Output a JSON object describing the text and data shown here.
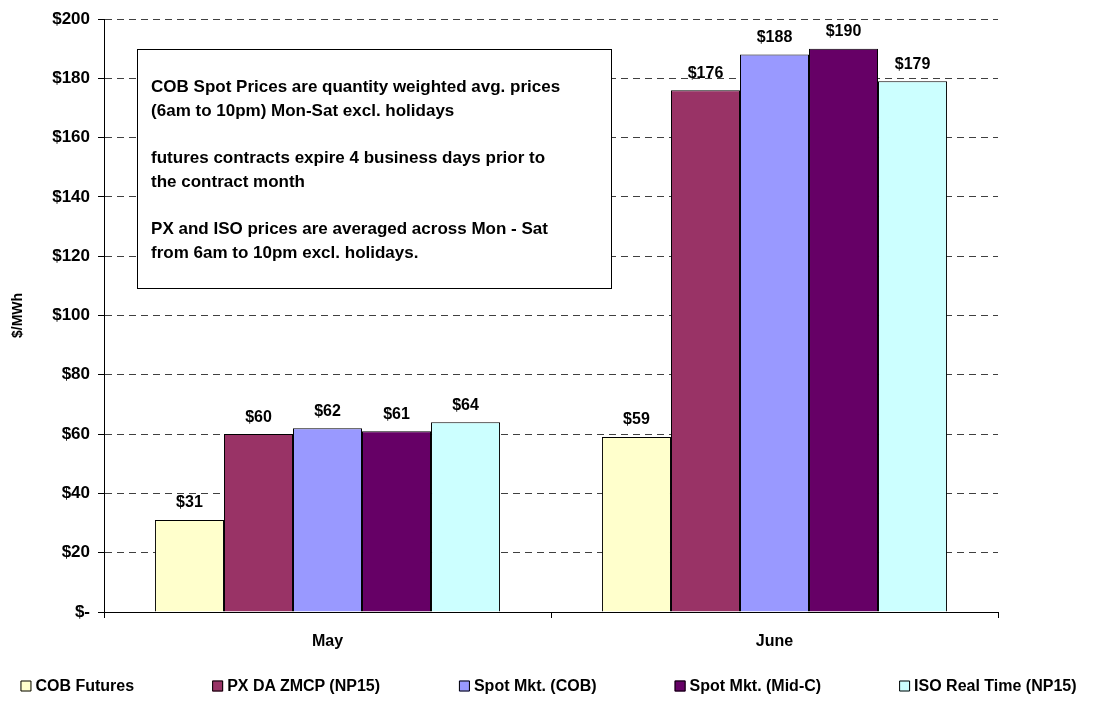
{
  "chart_data": {
    "type": "bar",
    "categories": [
      "May",
      "June"
    ],
    "series": [
      {
        "name": "COB Futures",
        "color": "#ffffcc",
        "values": [
          31,
          59
        ],
        "value_labels": [
          "$31",
          "$59"
        ]
      },
      {
        "name": "PX DA ZMCP (NP15)",
        "color": "#993366",
        "values": [
          60,
          176
        ],
        "value_labels": [
          "$60",
          "$176"
        ]
      },
      {
        "name": "Spot Mkt. (COB)",
        "color": "#9999ff",
        "values": [
          62,
          188
        ],
        "value_labels": [
          "$62",
          "$188"
        ]
      },
      {
        "name": "Spot Mkt. (Mid-C)",
        "color": "#660066",
        "values": [
          61,
          190
        ],
        "value_labels": [
          "$61",
          "$190"
        ]
      },
      {
        "name": "ISO Real Time (NP15)",
        "color": "#ccffff",
        "values": [
          64,
          179
        ],
        "value_labels": [
          "$64",
          "$179"
        ]
      }
    ],
    "ylabel": "$/MWh",
    "ylim": [
      0,
      200
    ],
    "yticks": [
      {
        "value": 0,
        "label": "$-"
      },
      {
        "value": 20,
        "label": "$20"
      },
      {
        "value": 40,
        "label": "$40"
      },
      {
        "value": 60,
        "label": "$60"
      },
      {
        "value": 80,
        "label": "$80"
      },
      {
        "value": 100,
        "label": "$100"
      },
      {
        "value": 120,
        "label": "$120"
      },
      {
        "value": 140,
        "label": "$140"
      },
      {
        "value": 160,
        "label": "$160"
      },
      {
        "value": 180,
        "label": "$180"
      },
      {
        "value": 200,
        "label": "$200"
      }
    ],
    "grid": "y",
    "legend": "bottom",
    "annotations": [
      "COB Spot Prices are quantity weighted avg. prices (6am to 10pm) Mon-Sat excl. holidays",
      "futures contracts expire 4 business days prior to the contract month",
      "PX and ISO prices are averaged across Mon - Sat from 6am to 10pm excl. holidays."
    ]
  }
}
